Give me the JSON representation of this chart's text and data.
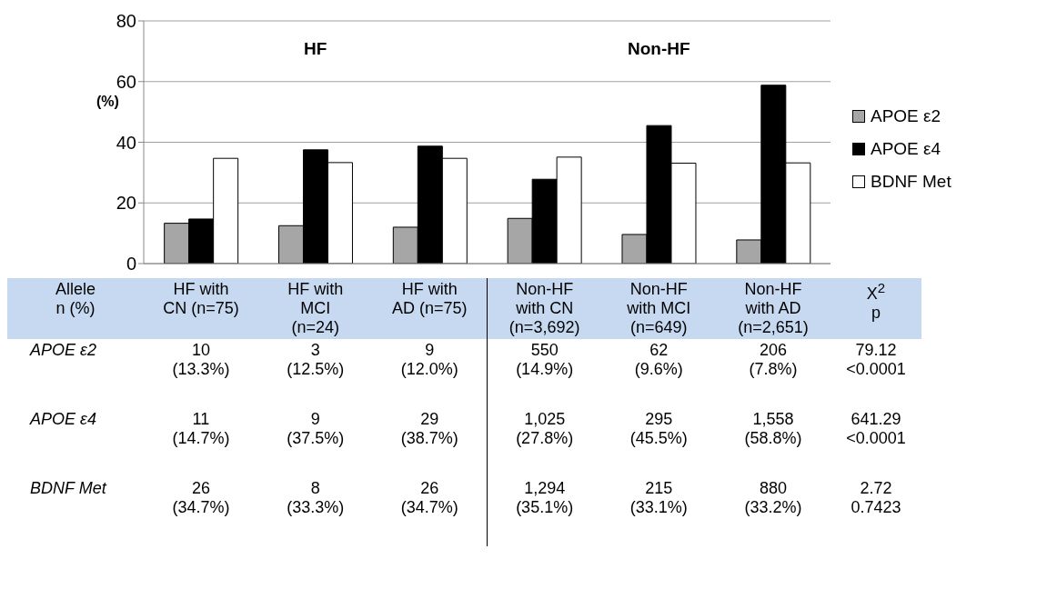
{
  "chart_data": {
    "type": "bar",
    "ylabel": "(%)",
    "categories": [
      "HF with CN (n=75)",
      "HF with MCI (n=24)",
      "HF with AD (n=75)",
      "Non-HF with CN (n=3,692)",
      "Non-HF with MCI (n=649)",
      "Non-HF with AD (n=2,651)"
    ],
    "series": [
      {
        "name": "APOE ε2",
        "color": "#a6a6a6",
        "values": [
          13.3,
          12.5,
          12.0,
          14.9,
          9.6,
          7.8
        ],
        "value_labels": [
          "10 (13.3%)",
          "3 (12.5%)",
          "9 (12.0%)",
          "550 (14.9%)",
          "62 (9.6%)",
          "206 (7.8%)"
        ]
      },
      {
        "name": "APOE ε4",
        "color": "#000000",
        "values": [
          14.7,
          37.5,
          38.7,
          27.8,
          45.5,
          58.8
        ],
        "value_labels": [
          "11 (14.7%)",
          "9 (37.5%)",
          "29 (38.7%)",
          "1,025 (27.8%)",
          "295 (45.5%)",
          "1,558 (58.8%)"
        ]
      },
      {
        "name": "BDNF Met",
        "color": "#ffffff",
        "values": [
          34.7,
          33.3,
          34.7,
          35.1,
          33.1,
          33.2
        ],
        "value_labels": [
          "26 (34.7%)",
          "8 (33.3%)",
          "26 (34.7%)",
          "1,294 (35.1%)",
          "215 (33.1%)",
          "880 (33.2%)"
        ]
      }
    ],
    "annotations": [
      "HF",
      "Non-HF",
      "Allele n (%)",
      "X$^{2}$ p",
      "79.12 <0.0001",
      "641.29 <0.0001",
      "2.72 0.7423"
    ],
    "ylim": [
      0,
      80
    ],
    "yticks": [
      0,
      20,
      40,
      60,
      80
    ],
    "grid": "y",
    "legend": "right",
    "tick_labels": "y"
  }
}
